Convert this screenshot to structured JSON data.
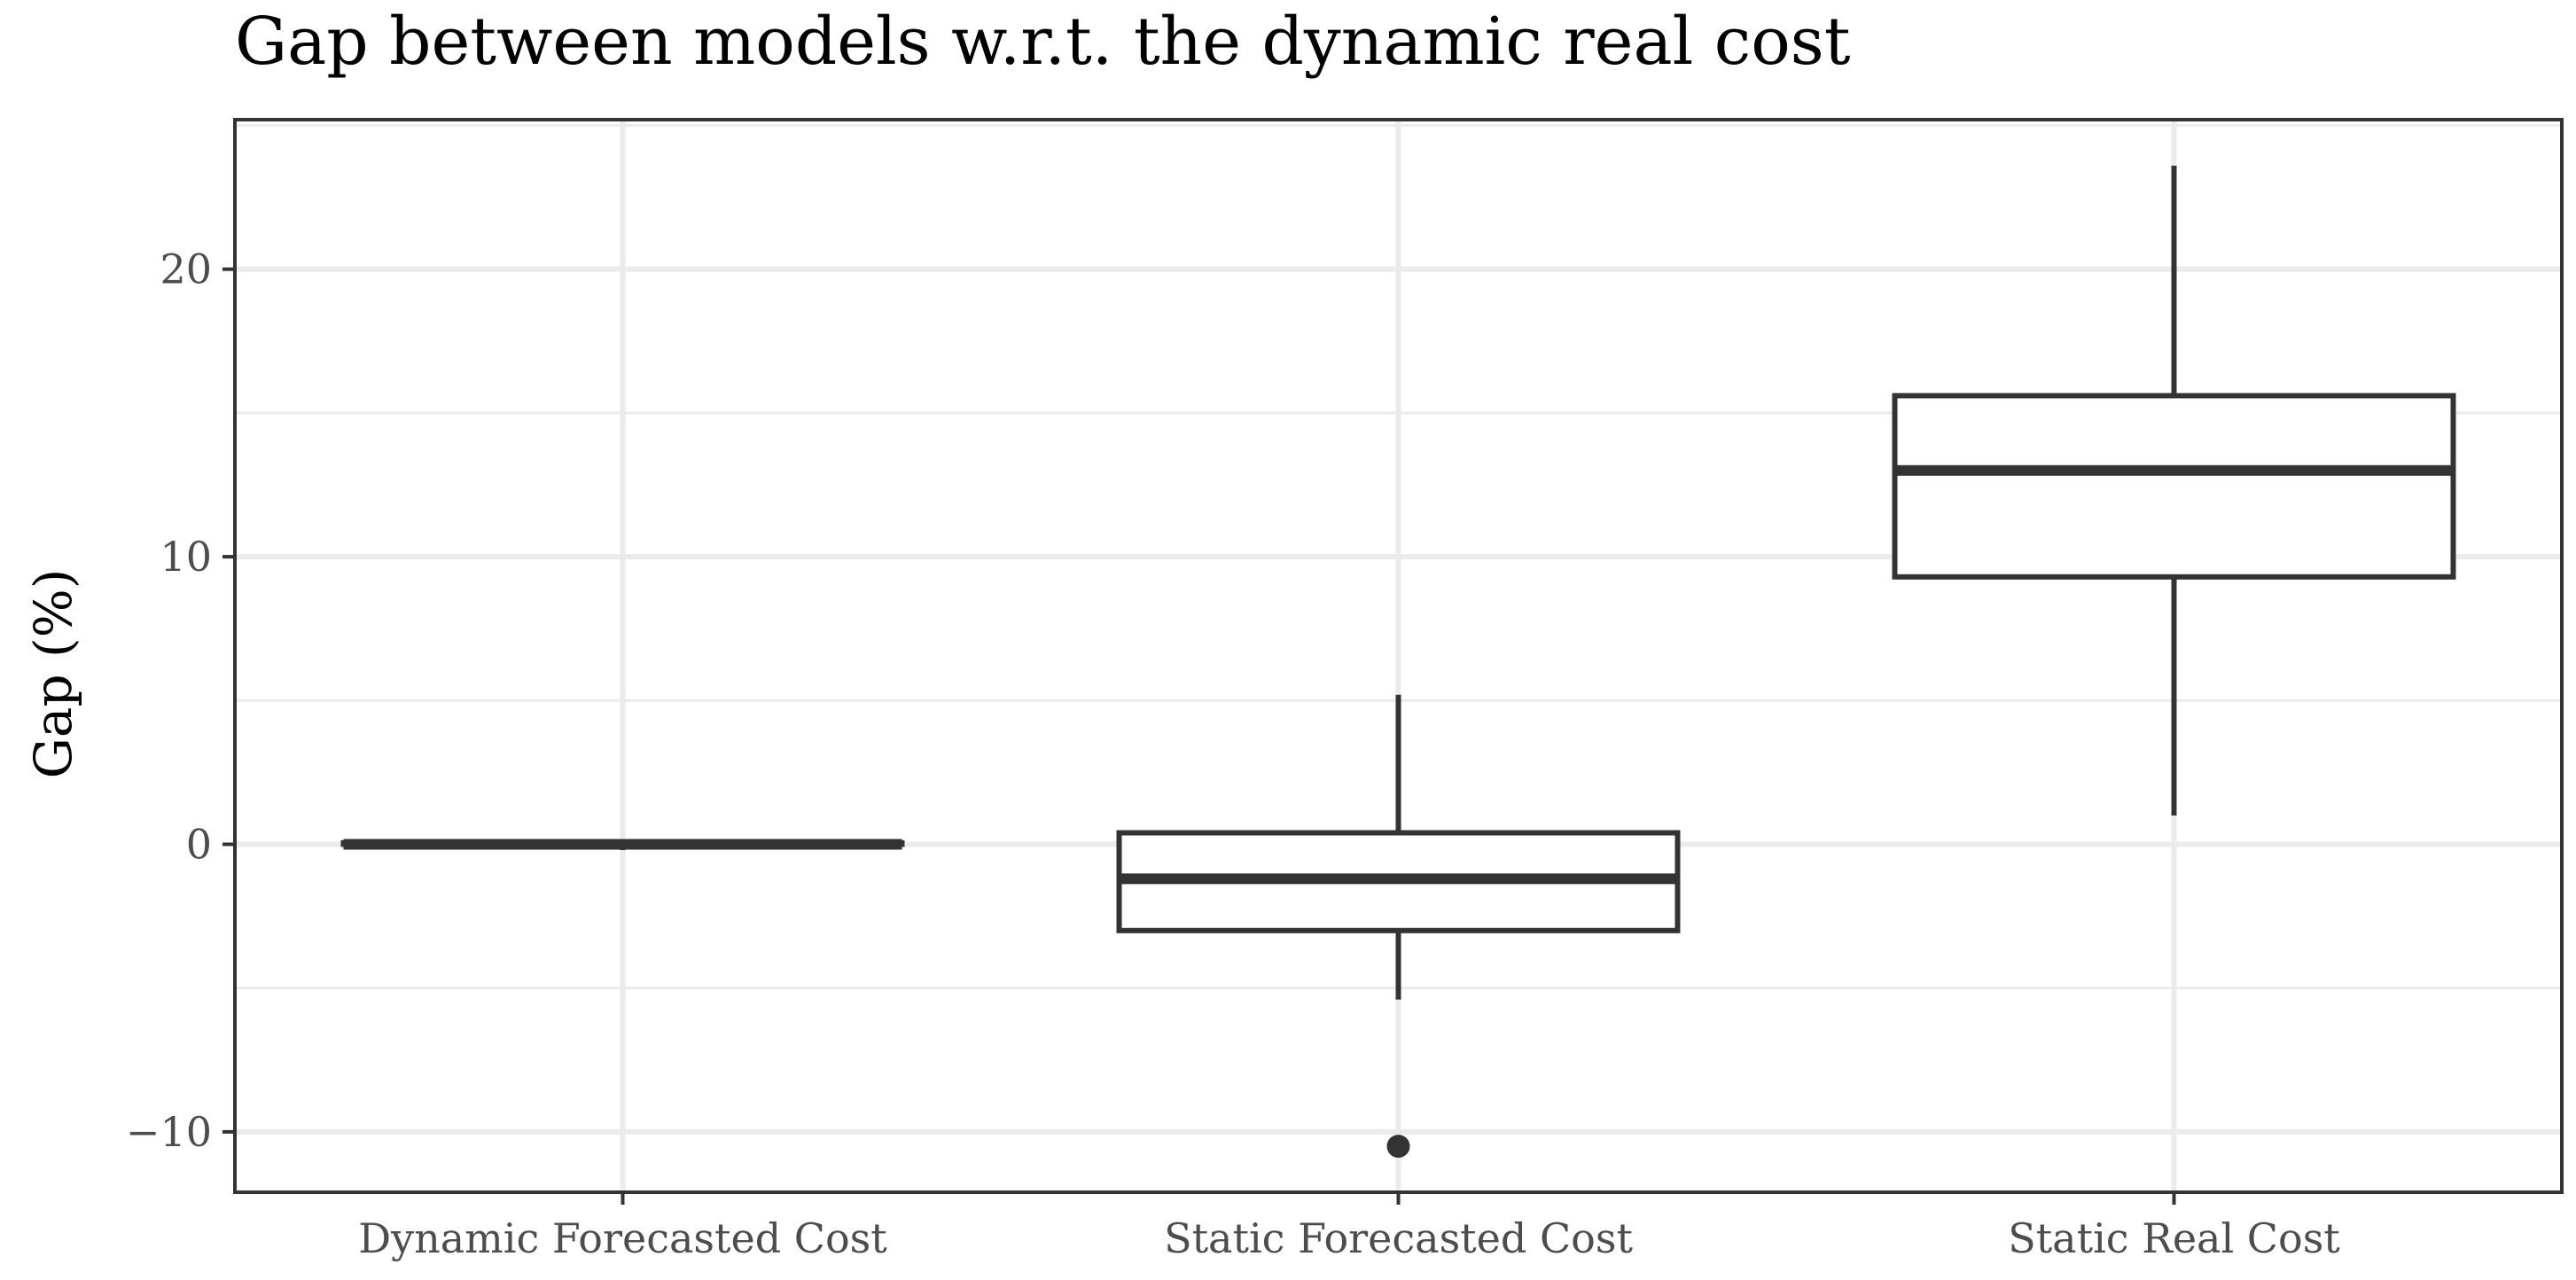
{
  "chart_data": {
    "type": "boxplot",
    "title": "Gap between models w.r.t. the dynamic real cost",
    "xlabel": "",
    "ylabel": "Gap (%)",
    "ylim": [
      -12.1,
      25.2
    ],
    "y_ticks": [
      -10,
      0,
      10,
      20
    ],
    "y_tick_labels": [
      "−10",
      "0",
      "10",
      "20"
    ],
    "grid": true,
    "legend": "none",
    "categories": [
      "Dynamic Forecasted Cost",
      "Static Forecasted Cost",
      "Static Real Cost"
    ],
    "boxes": [
      {
        "category": "Dynamic Forecasted Cost",
        "lower_whisker": -0.2,
        "q1": 0.0,
        "median": 0.0,
        "q3": 0.05,
        "upper_whisker": 0.1,
        "outliers": []
      },
      {
        "category": "Static Forecasted Cost",
        "lower_whisker": -5.4,
        "q1": -3.0,
        "median": -1.2,
        "q3": 0.4,
        "upper_whisker": 5.2,
        "outliers": [
          -10.5
        ]
      },
      {
        "category": "Static Real Cost",
        "lower_whisker": 1.0,
        "q1": 9.3,
        "median": 13.0,
        "q3": 15.6,
        "upper_whisker": 23.6,
        "outliers": []
      }
    ],
    "colors": {
      "box_stroke": "#333333",
      "box_fill": "#ffffff",
      "grid": "#ebebeb",
      "panel_border": "#333333",
      "tick_text": "#4d4d4d",
      "title_text": "#000000"
    }
  }
}
